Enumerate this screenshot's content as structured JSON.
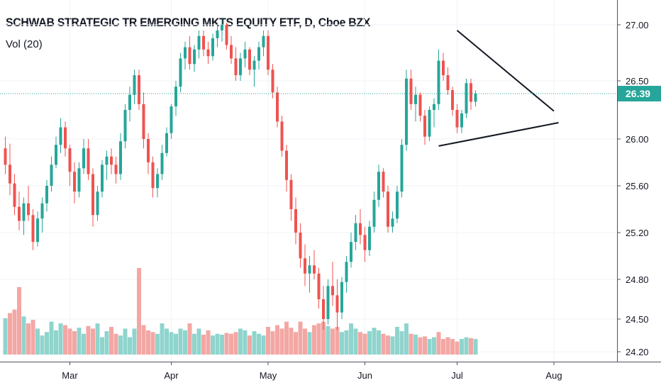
{
  "header": {
    "title": "SCHWAB STRATEGIC TR EMERGING MKTS EQUITY ETF, D, Cboe BZX",
    "volume_label": "Vol (20)"
  },
  "colors": {
    "up": "#26a69a",
    "down": "#ef5350",
    "up_volume": "#8fd4cd",
    "down_volume": "#f3a7a4",
    "last_price": "#26a69a",
    "trendline": "#131722",
    "background": "#ffffff"
  },
  "chart_data": {
    "type": "candlestick",
    "title": "SCHWAB STRATEGIC TR EMERGING MKTS EQUITY ETF, D, Cboe BZX",
    "interval": "D",
    "exchange": "Cboe BZX",
    "y_axis": {
      "ticks": [
        "27.00",
        "26.50",
        "26.00",
        "25.60",
        "25.20",
        "24.80",
        "24.50",
        "24.20"
      ],
      "range": [
        24.15,
        27.1
      ],
      "side": "right"
    },
    "x_axis": {
      "ticks": [
        {
          "label": "Mar",
          "index": 14
        },
        {
          "label": "Apr",
          "index": 36
        },
        {
          "label": "May",
          "index": 57
        },
        {
          "label": "Jun",
          "index": 78
        },
        {
          "label": "Jul",
          "index": 98
        },
        {
          "label": "Aug",
          "index": 119
        }
      ]
    },
    "last_price": "26.39",
    "candles": [
      [
        25.92,
        26.02,
        25.7,
        25.78
      ],
      [
        25.78,
        25.96,
        25.52,
        25.62
      ],
      [
        25.62,
        25.7,
        25.35,
        25.42
      ],
      [
        25.42,
        25.55,
        25.22,
        25.3
      ],
      [
        25.3,
        25.5,
        25.18,
        25.45
      ],
      [
        25.45,
        25.6,
        25.3,
        25.35
      ],
      [
        25.35,
        25.4,
        25.05,
        25.12
      ],
      [
        25.12,
        25.38,
        25.08,
        25.32
      ],
      [
        25.32,
        25.5,
        25.2,
        25.45
      ],
      [
        25.45,
        25.65,
        25.38,
        25.6
      ],
      [
        25.6,
        25.85,
        25.55,
        25.78
      ],
      [
        25.78,
        26.02,
        25.75,
        25.95
      ],
      [
        25.95,
        26.18,
        25.88,
        26.1
      ],
      [
        26.1,
        26.15,
        25.85,
        25.92
      ],
      [
        25.92,
        25.95,
        25.6,
        25.72
      ],
      [
        25.72,
        25.8,
        25.45,
        25.55
      ],
      [
        25.55,
        25.8,
        25.5,
        25.75
      ],
      [
        25.75,
        26.0,
        25.7,
        25.92
      ],
      [
        25.92,
        26.0,
        25.65,
        25.7
      ],
      [
        25.7,
        25.75,
        25.25,
        25.35
      ],
      [
        25.35,
        25.6,
        25.3,
        25.55
      ],
      [
        25.55,
        25.82,
        25.5,
        25.78
      ],
      [
        25.78,
        25.9,
        25.65,
        25.85
      ],
      [
        25.85,
        25.92,
        25.7,
        25.78
      ],
      [
        25.78,
        25.85,
        25.62,
        25.7
      ],
      [
        25.7,
        26.05,
        25.65,
        25.98
      ],
      [
        25.98,
        26.3,
        25.92,
        26.25
      ],
      [
        26.25,
        26.45,
        26.15,
        26.38
      ],
      [
        26.38,
        26.6,
        26.3,
        26.55
      ],
      [
        26.55,
        26.6,
        26.25,
        26.3
      ],
      [
        26.3,
        26.4,
        25.92,
        26.0
      ],
      [
        26.0,
        26.05,
        25.7,
        25.8
      ],
      [
        25.8,
        25.85,
        25.5,
        25.58
      ],
      [
        25.58,
        25.75,
        25.5,
        25.7
      ],
      [
        25.7,
        25.95,
        25.65,
        25.88
      ],
      [
        25.88,
        26.1,
        25.85,
        26.05
      ],
      [
        26.05,
        26.3,
        26.0,
        26.28
      ],
      [
        26.28,
        26.5,
        26.2,
        26.45
      ],
      [
        26.45,
        26.75,
        26.4,
        26.7
      ],
      [
        26.7,
        26.85,
        26.6,
        26.8
      ],
      [
        26.8,
        26.9,
        26.6,
        26.65
      ],
      [
        26.65,
        26.82,
        26.58,
        26.78
      ],
      [
        26.78,
        26.95,
        26.7,
        26.9
      ],
      [
        26.9,
        26.95,
        26.72,
        26.78
      ],
      [
        26.78,
        26.85,
        26.65,
        26.72
      ],
      [
        26.72,
        26.92,
        26.68,
        26.88
      ],
      [
        26.88,
        27.02,
        26.8,
        26.95
      ],
      [
        26.95,
        27.05,
        26.85,
        27.0
      ],
      [
        27.0,
        27.02,
        26.78,
        26.82
      ],
      [
        26.82,
        26.9,
        26.65,
        26.7
      ],
      [
        26.7,
        26.8,
        26.5,
        26.55
      ],
      [
        26.55,
        26.75,
        26.5,
        26.7
      ],
      [
        26.7,
        26.85,
        26.62,
        26.78
      ],
      [
        26.78,
        26.8,
        26.55,
        26.6
      ],
      [
        26.6,
        26.72,
        26.45,
        26.68
      ],
      [
        26.68,
        26.85,
        26.6,
        26.8
      ],
      [
        26.8,
        26.95,
        26.72,
        26.9
      ],
      [
        26.9,
        26.95,
        26.55,
        26.6
      ],
      [
        26.6,
        26.65,
        26.35,
        26.4
      ],
      [
        26.4,
        26.45,
        26.1,
        26.15
      ],
      [
        26.15,
        26.2,
        25.85,
        25.9
      ],
      [
        25.9,
        25.95,
        25.55,
        25.65
      ],
      [
        25.65,
        25.7,
        25.3,
        25.4
      ],
      [
        25.4,
        25.5,
        25.1,
        25.2
      ],
      [
        25.2,
        25.28,
        24.9,
        24.98
      ],
      [
        24.98,
        25.1,
        24.75,
        24.85
      ],
      [
        24.85,
        25.0,
        24.7,
        24.92
      ],
      [
        24.92,
        25.05,
        24.8,
        24.85
      ],
      [
        24.85,
        24.9,
        24.58,
        24.65
      ],
      [
        24.65,
        24.75,
        24.4,
        24.5
      ],
      [
        24.5,
        24.8,
        24.45,
        24.75
      ],
      [
        24.75,
        24.95,
        24.6,
        24.68
      ],
      [
        24.68,
        24.8,
        24.4,
        24.55
      ],
      [
        24.55,
        24.82,
        24.5,
        24.78
      ],
      [
        24.78,
        25.0,
        24.7,
        24.95
      ],
      [
        24.95,
        25.2,
        24.9,
        25.12
      ],
      [
        25.12,
        25.35,
        25.05,
        25.28
      ],
      [
        25.28,
        25.4,
        25.1,
        25.18
      ],
      [
        25.18,
        25.25,
        24.95,
        25.05
      ],
      [
        25.05,
        25.3,
        25.0,
        25.25
      ],
      [
        25.25,
        25.55,
        25.2,
        25.48
      ],
      [
        25.48,
        25.78,
        25.42,
        25.72
      ],
      [
        25.72,
        25.75,
        25.5,
        25.55
      ],
      [
        25.55,
        25.6,
        25.2,
        25.25
      ],
      [
        25.25,
        25.38,
        25.2,
        25.32
      ],
      [
        25.32,
        25.6,
        25.28,
        25.55
      ],
      [
        25.55,
        26.0,
        25.5,
        25.95
      ],
      [
        25.95,
        26.6,
        25.9,
        26.52
      ],
      [
        26.52,
        26.6,
        26.25,
        26.3
      ],
      [
        26.3,
        26.45,
        26.15,
        26.38
      ],
      [
        26.38,
        26.4,
        26.15,
        26.2
      ],
      [
        26.2,
        26.25,
        25.95,
        26.02
      ],
      [
        26.02,
        26.28,
        25.98,
        26.25
      ],
      [
        26.25,
        26.35,
        26.1,
        26.3
      ],
      [
        26.3,
        26.78,
        26.25,
        26.68
      ],
      [
        26.68,
        26.75,
        26.5,
        26.55
      ],
      [
        26.55,
        26.62,
        26.38,
        26.42
      ],
      [
        26.42,
        26.45,
        26.2,
        26.25
      ],
      [
        26.25,
        26.3,
        26.05,
        26.1
      ],
      [
        26.1,
        26.25,
        26.05,
        26.22
      ],
      [
        26.22,
        26.52,
        26.18,
        26.48
      ],
      [
        26.48,
        26.52,
        26.25,
        26.32
      ],
      [
        26.32,
        26.42,
        26.28,
        26.39
      ]
    ],
    "volumes": [
      [
        0.42,
        "up"
      ],
      [
        0.48,
        "down"
      ],
      [
        0.52,
        "down"
      ],
      [
        0.78,
        "down"
      ],
      [
        0.44,
        "up"
      ],
      [
        0.36,
        "down"
      ],
      [
        0.4,
        "down"
      ],
      [
        0.3,
        "up"
      ],
      [
        0.22,
        "up"
      ],
      [
        0.26,
        "up"
      ],
      [
        0.38,
        "up"
      ],
      [
        0.28,
        "up"
      ],
      [
        0.36,
        "up"
      ],
      [
        0.34,
        "down"
      ],
      [
        0.3,
        "down"
      ],
      [
        0.27,
        "down"
      ],
      [
        0.31,
        "up"
      ],
      [
        0.24,
        "up"
      ],
      [
        0.33,
        "down"
      ],
      [
        0.3,
        "down"
      ],
      [
        0.36,
        "up"
      ],
      [
        0.2,
        "up"
      ],
      [
        0.27,
        "up"
      ],
      [
        0.32,
        "down"
      ],
      [
        0.24,
        "down"
      ],
      [
        0.22,
        "up"
      ],
      [
        0.3,
        "up"
      ],
      [
        0.2,
        "up"
      ],
      [
        0.3,
        "up"
      ],
      [
        1.0,
        "down"
      ],
      [
        0.34,
        "down"
      ],
      [
        0.28,
        "down"
      ],
      [
        0.26,
        "down"
      ],
      [
        0.24,
        "up"
      ],
      [
        0.36,
        "up"
      ],
      [
        0.3,
        "up"
      ],
      [
        0.26,
        "up"
      ],
      [
        0.24,
        "up"
      ],
      [
        0.3,
        "up"
      ],
      [
        0.28,
        "up"
      ],
      [
        0.36,
        "down"
      ],
      [
        0.24,
        "up"
      ],
      [
        0.3,
        "up"
      ],
      [
        0.23,
        "down"
      ],
      [
        0.28,
        "down"
      ],
      [
        0.22,
        "up"
      ],
      [
        0.24,
        "up"
      ],
      [
        0.23,
        "up"
      ],
      [
        0.25,
        "down"
      ],
      [
        0.24,
        "down"
      ],
      [
        0.26,
        "down"
      ],
      [
        0.3,
        "up"
      ],
      [
        0.28,
        "up"
      ],
      [
        0.22,
        "down"
      ],
      [
        0.27,
        "up"
      ],
      [
        0.24,
        "up"
      ],
      [
        0.22,
        "up"
      ],
      [
        0.32,
        "down"
      ],
      [
        0.27,
        "down"
      ],
      [
        0.34,
        "down"
      ],
      [
        0.3,
        "down"
      ],
      [
        0.38,
        "down"
      ],
      [
        0.31,
        "down"
      ],
      [
        0.26,
        "down"
      ],
      [
        0.38,
        "down"
      ],
      [
        0.3,
        "down"
      ],
      [
        0.26,
        "up"
      ],
      [
        0.34,
        "down"
      ],
      [
        0.36,
        "down"
      ],
      [
        0.38,
        "down"
      ],
      [
        0.33,
        "up"
      ],
      [
        0.3,
        "down"
      ],
      [
        0.32,
        "down"
      ],
      [
        0.26,
        "up"
      ],
      [
        0.28,
        "up"
      ],
      [
        0.36,
        "up"
      ],
      [
        0.3,
        "up"
      ],
      [
        0.26,
        "down"
      ],
      [
        0.24,
        "down"
      ],
      [
        0.27,
        "up"
      ],
      [
        0.31,
        "up"
      ],
      [
        0.28,
        "up"
      ],
      [
        0.24,
        "down"
      ],
      [
        0.22,
        "down"
      ],
      [
        0.21,
        "up"
      ],
      [
        0.32,
        "up"
      ],
      [
        0.27,
        "up"
      ],
      [
        0.36,
        "up"
      ],
      [
        0.24,
        "down"
      ],
      [
        0.23,
        "up"
      ],
      [
        0.2,
        "down"
      ],
      [
        0.21,
        "down"
      ],
      [
        0.18,
        "up"
      ],
      [
        0.2,
        "up"
      ],
      [
        0.26,
        "down"
      ],
      [
        0.18,
        "down"
      ],
      [
        0.2,
        "down"
      ],
      [
        0.18,
        "down"
      ],
      [
        0.15,
        "down"
      ],
      [
        0.18,
        "up"
      ],
      [
        0.2,
        "up"
      ],
      [
        0.19,
        "down"
      ],
      [
        0.18,
        "up"
      ]
    ],
    "trendlines": [
      {
        "name": "upper",
        "from": [
          98,
          26.95
        ],
        "to": [
          119,
          26.24
        ]
      },
      {
        "name": "lower",
        "from": [
          94,
          25.94
        ],
        "to": [
          120,
          26.14
        ]
      }
    ]
  }
}
